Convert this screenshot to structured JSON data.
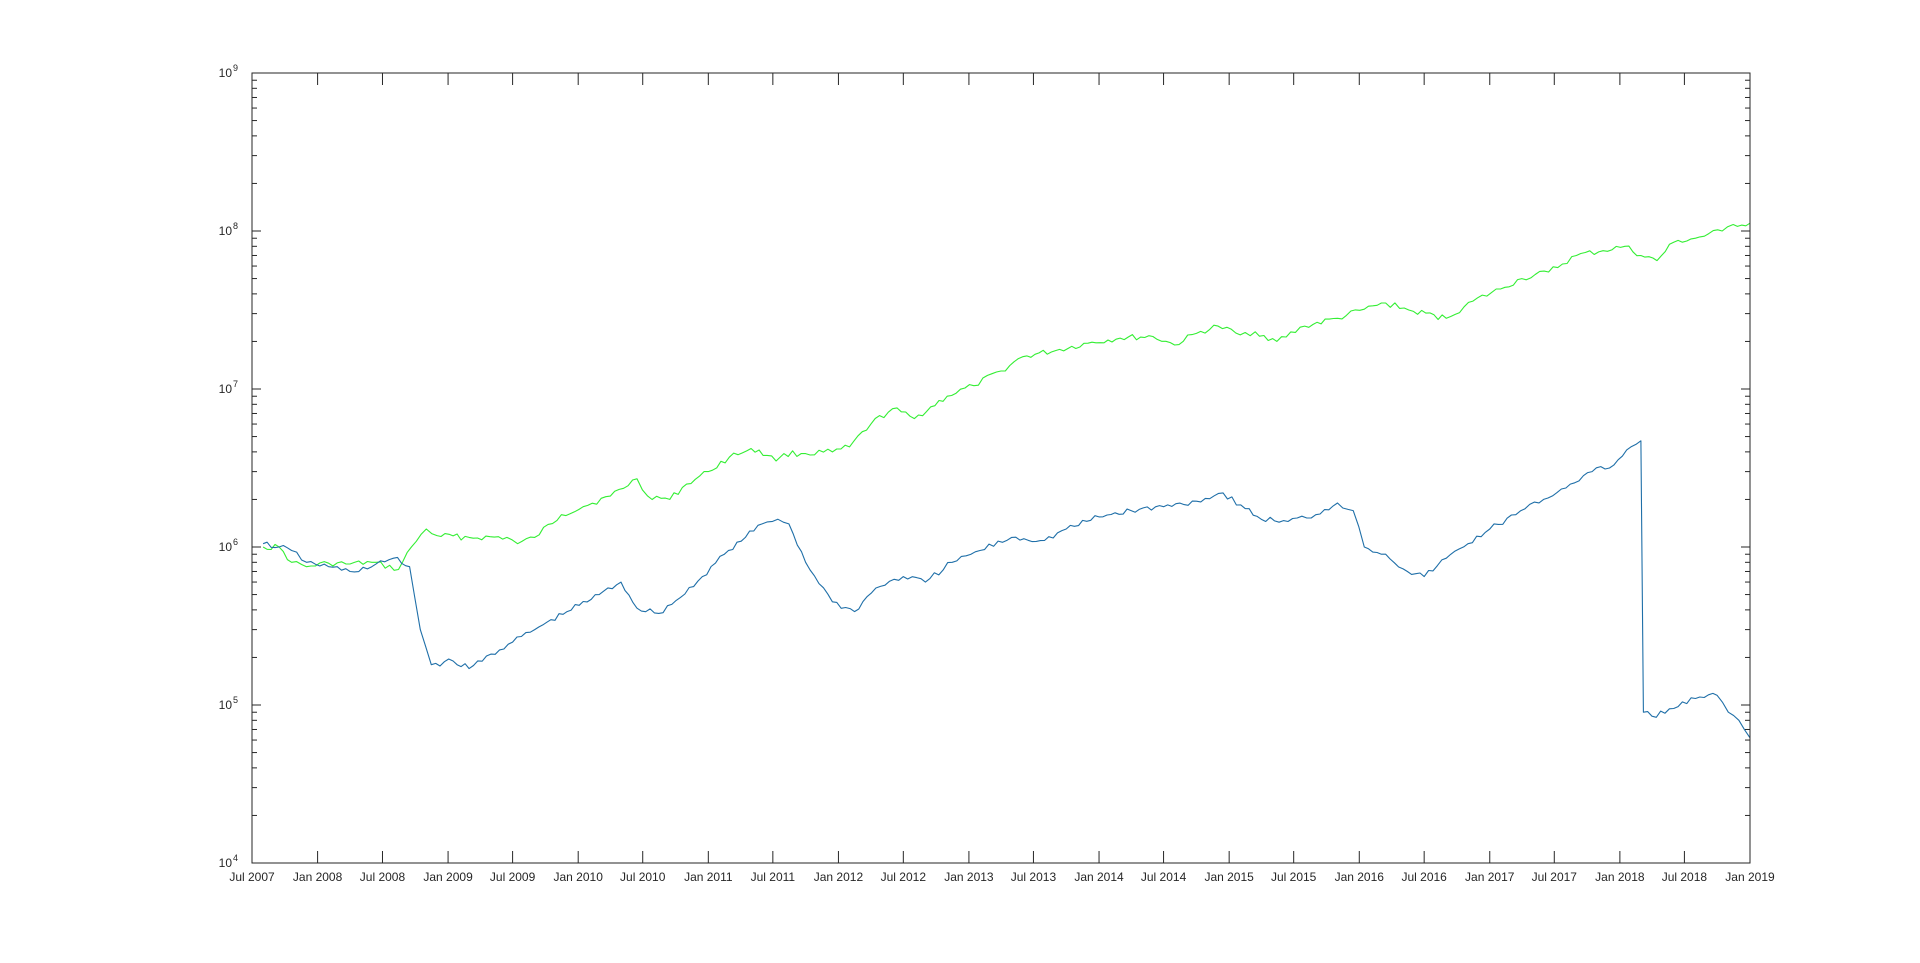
{
  "chart_data": {
    "type": "line",
    "title": "",
    "xlabel": "",
    "ylabel": "",
    "y_scale": "log",
    "ylim": [
      10000,
      1000000000
    ],
    "xlim": [
      "2007-07-01",
      "2019-01-01"
    ],
    "grid": false,
    "legend": "none",
    "x_ticks": [
      {
        "date": "2007-07-01",
        "label": "Jul 2007"
      },
      {
        "date": "2008-01-01",
        "label": "Jan 2008"
      },
      {
        "date": "2008-07-01",
        "label": "Jul 2008"
      },
      {
        "date": "2009-01-01",
        "label": "Jan 2009"
      },
      {
        "date": "2009-07-01",
        "label": "Jul 2009"
      },
      {
        "date": "2010-01-01",
        "label": "Jan 2010"
      },
      {
        "date": "2010-07-01",
        "label": "Jul 2010"
      },
      {
        "date": "2011-01-01",
        "label": "Jan 2011"
      },
      {
        "date": "2011-07-01",
        "label": "Jul 2011"
      },
      {
        "date": "2012-01-01",
        "label": "Jan 2012"
      },
      {
        "date": "2012-07-01",
        "label": "Jul 2012"
      },
      {
        "date": "2013-01-01",
        "label": "Jan 2013"
      },
      {
        "date": "2013-07-01",
        "label": "Jul 2013"
      },
      {
        "date": "2014-01-01",
        "label": "Jan 2014"
      },
      {
        "date": "2014-07-01",
        "label": "Jul 2014"
      },
      {
        "date": "2015-01-01",
        "label": "Jan 2015"
      },
      {
        "date": "2015-07-01",
        "label": "Jul 2015"
      },
      {
        "date": "2016-01-01",
        "label": "Jan 2016"
      },
      {
        "date": "2016-07-01",
        "label": "Jul 2016"
      },
      {
        "date": "2017-01-01",
        "label": "Jan 2017"
      },
      {
        "date": "2017-07-01",
        "label": "Jul 2017"
      },
      {
        "date": "2018-01-01",
        "label": "Jan 2018"
      },
      {
        "date": "2018-07-01",
        "label": "Jul 2018"
      },
      {
        "date": "2019-01-01",
        "label": "Jan 2019"
      }
    ],
    "y_ticks": [
      {
        "value": 10000,
        "base": "10",
        "exp": "4"
      },
      {
        "value": 100000,
        "base": "10",
        "exp": "5"
      },
      {
        "value": 1000000,
        "base": "10",
        "exp": "6"
      },
      {
        "value": 10000000,
        "base": "10",
        "exp": "7"
      },
      {
        "value": 100000000,
        "base": "10",
        "exp": "8"
      },
      {
        "value": 1000000000,
        "base": "10",
        "exp": "9"
      }
    ],
    "series": [
      {
        "color": "#33ee33",
        "points": [
          [
            "2007-08-01",
            1000000
          ],
          [
            "2007-09-15",
            1000000
          ],
          [
            "2007-10-20",
            800000
          ],
          [
            "2007-12-01",
            750000
          ],
          [
            "2008-02-01",
            790000
          ],
          [
            "2008-04-01",
            780000
          ],
          [
            "2008-06-01",
            800000
          ],
          [
            "2008-08-15",
            720000
          ],
          [
            "2008-09-20",
            1000000
          ],
          [
            "2008-11-01",
            1300000
          ],
          [
            "2008-12-01",
            1180000
          ],
          [
            "2009-03-01",
            1150000
          ],
          [
            "2009-06-15",
            1150000
          ],
          [
            "2009-07-15",
            1050000
          ],
          [
            "2009-09-01",
            1150000
          ],
          [
            "2009-11-15",
            1600000
          ],
          [
            "2010-01-15",
            1800000
          ],
          [
            "2010-04-01",
            2100000
          ],
          [
            "2010-06-15",
            2700000
          ],
          [
            "2010-07-15",
            2100000
          ],
          [
            "2010-09-15",
            2000000
          ],
          [
            "2010-11-01",
            2500000
          ],
          [
            "2011-01-01",
            3000000
          ],
          [
            "2011-03-01",
            3700000
          ],
          [
            "2011-05-01",
            4200000
          ],
          [
            "2011-06-15",
            3800000
          ],
          [
            "2011-07-10",
            3500000
          ],
          [
            "2011-08-01",
            3900000
          ],
          [
            "2011-10-01",
            3900000
          ],
          [
            "2011-12-15",
            4000000
          ],
          [
            "2012-02-01",
            4300000
          ],
          [
            "2012-04-01",
            6000000
          ],
          [
            "2012-06-01",
            7500000
          ],
          [
            "2012-08-01",
            6500000
          ],
          [
            "2012-11-01",
            9000000
          ],
          [
            "2013-01-15",
            10500000
          ],
          [
            "2013-04-01",
            13000000
          ],
          [
            "2013-06-01",
            16000000
          ],
          [
            "2013-09-01",
            17500000
          ],
          [
            "2013-12-01",
            19500000
          ],
          [
            "2014-03-01",
            21000000
          ],
          [
            "2014-06-01",
            21500000
          ],
          [
            "2014-08-01",
            19000000
          ],
          [
            "2014-10-01",
            22500000
          ],
          [
            "2014-12-01",
            25000000
          ],
          [
            "2015-02-01",
            22000000
          ],
          [
            "2015-03-15",
            23000000
          ],
          [
            "2015-05-15",
            20000000
          ],
          [
            "2015-08-01",
            25000000
          ],
          [
            "2015-11-01",
            28000000
          ],
          [
            "2016-01-15",
            32000000
          ],
          [
            "2016-03-15",
            35000000
          ],
          [
            "2016-06-01",
            31000000
          ],
          [
            "2016-09-01",
            28000000
          ],
          [
            "2016-11-15",
            36000000
          ],
          [
            "2017-02-01",
            43000000
          ],
          [
            "2017-04-01",
            50000000
          ],
          [
            "2017-06-15",
            55000000
          ],
          [
            "2017-09-01",
            70000000
          ],
          [
            "2017-11-15",
            75000000
          ],
          [
            "2018-01-15",
            80000000
          ],
          [
            "2018-03-01",
            70000000
          ],
          [
            "2018-04-15",
            65000000
          ],
          [
            "2018-06-01",
            85000000
          ],
          [
            "2018-08-01",
            90000000
          ],
          [
            "2018-10-15",
            100000000
          ],
          [
            "2018-11-15",
            110000000
          ],
          [
            "2019-01-01",
            112000000
          ]
        ]
      },
      {
        "color": "#1f6fa8",
        "points": [
          [
            "2007-08-01",
            1050000
          ],
          [
            "2007-09-15",
            1000000
          ],
          [
            "2007-10-20",
            950000
          ],
          [
            "2007-12-01",
            800000
          ],
          [
            "2008-02-01",
            750000
          ],
          [
            "2008-04-01",
            700000
          ],
          [
            "2008-06-01",
            750000
          ],
          [
            "2008-08-01",
            850000
          ],
          [
            "2008-09-15",
            750000
          ],
          [
            "2008-10-15",
            300000
          ],
          [
            "2008-11-15",
            180000
          ],
          [
            "2009-01-15",
            190000
          ],
          [
            "2009-03-01",
            170000
          ],
          [
            "2009-05-01",
            210000
          ],
          [
            "2009-07-01",
            250000
          ],
          [
            "2009-09-01",
            300000
          ],
          [
            "2009-12-01",
            390000
          ],
          [
            "2010-03-01",
            500000
          ],
          [
            "2010-05-01",
            600000
          ],
          [
            "2010-06-15",
            410000
          ],
          [
            "2010-08-15",
            380000
          ],
          [
            "2010-10-15",
            480000
          ],
          [
            "2010-12-15",
            650000
          ],
          [
            "2011-02-15",
            900000
          ],
          [
            "2011-04-15",
            1150000
          ],
          [
            "2011-06-01",
            1400000
          ],
          [
            "2011-07-15",
            1500000
          ],
          [
            "2011-08-15",
            1400000
          ],
          [
            "2011-10-01",
            800000
          ],
          [
            "2011-12-15",
            450000
          ],
          [
            "2012-02-15",
            390000
          ],
          [
            "2012-04-15",
            550000
          ],
          [
            "2012-07-01",
            650000
          ],
          [
            "2012-09-01",
            600000
          ],
          [
            "2012-11-15",
            800000
          ],
          [
            "2013-02-01",
            950000
          ],
          [
            "2013-05-01",
            1150000
          ],
          [
            "2013-08-01",
            1100000
          ],
          [
            "2013-10-01",
            1300000
          ],
          [
            "2014-01-01",
            1550000
          ],
          [
            "2014-04-01",
            1700000
          ],
          [
            "2014-07-01",
            1800000
          ],
          [
            "2014-10-01",
            1950000
          ],
          [
            "2014-12-15",
            2200000
          ],
          [
            "2015-02-15",
            1750000
          ],
          [
            "2015-04-01",
            1500000
          ],
          [
            "2015-06-15",
            1450000
          ],
          [
            "2015-09-01",
            1600000
          ],
          [
            "2015-11-01",
            1900000
          ],
          [
            "2015-12-15",
            1700000
          ],
          [
            "2016-01-15",
            1000000
          ],
          [
            "2016-03-15",
            900000
          ],
          [
            "2016-05-15",
            700000
          ],
          [
            "2016-07-01",
            650000
          ],
          [
            "2016-09-01",
            850000
          ],
          [
            "2016-11-01",
            1050000
          ],
          [
            "2017-01-01",
            1300000
          ],
          [
            "2017-03-15",
            1600000
          ],
          [
            "2017-06-01",
            2000000
          ],
          [
            "2017-08-15",
            2500000
          ],
          [
            "2017-10-15",
            3000000
          ],
          [
            "2017-12-15",
            3300000
          ],
          [
            "2018-02-01",
            4300000
          ],
          [
            "2018-03-01",
            4700000
          ],
          [
            "2018-03-08",
            90000
          ],
          [
            "2018-04-01",
            85000
          ],
          [
            "2018-06-01",
            95000
          ],
          [
            "2018-08-01",
            110000
          ],
          [
            "2018-10-01",
            115000
          ],
          [
            "2018-11-01",
            90000
          ],
          [
            "2018-12-01",
            80000
          ],
          [
            "2019-01-01",
            62000
          ]
        ]
      }
    ]
  }
}
